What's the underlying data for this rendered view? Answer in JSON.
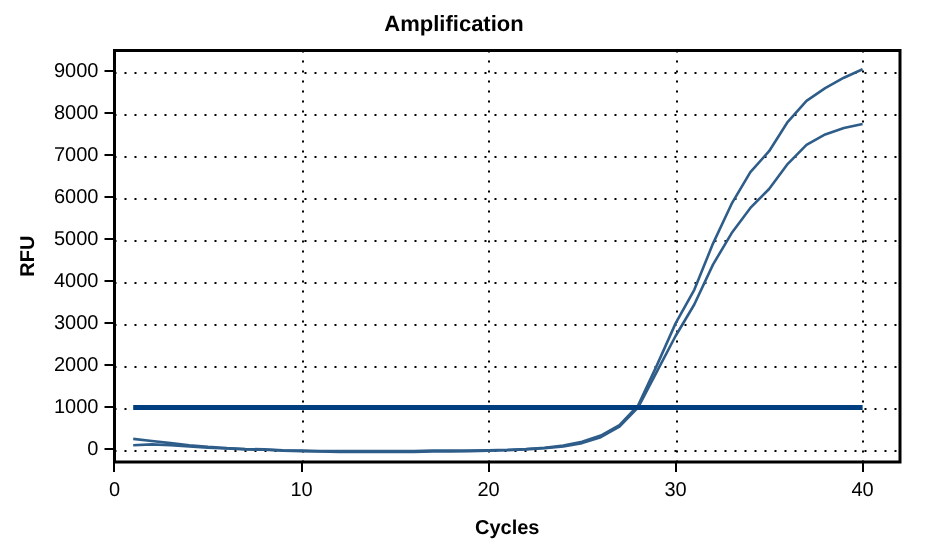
{
  "chart_data": {
    "type": "line",
    "title": "Amplification",
    "xlabel": "Cycles",
    "ylabel": "RFU",
    "x": [
      1,
      2,
      3,
      4,
      5,
      6,
      7,
      8,
      9,
      10,
      11,
      12,
      13,
      14,
      15,
      16,
      17,
      18,
      19,
      20,
      21,
      22,
      23,
      24,
      25,
      26,
      27,
      28,
      29,
      30,
      31,
      32,
      33,
      34,
      35,
      36,
      37,
      38,
      39,
      40
    ],
    "series": [
      {
        "color": "#2f5d8a",
        "values": [
          250,
          200,
          150,
          100,
          60,
          30,
          10,
          0,
          -20,
          -30,
          -40,
          -40,
          -40,
          -40,
          -40,
          -40,
          -30,
          -30,
          -30,
          -20,
          -10,
          10,
          40,
          90,
          180,
          330,
          580,
          1050,
          2000,
          3000,
          3800,
          4900,
          5850,
          6600,
          7100,
          7800,
          8300,
          8600,
          8850,
          9050
        ]
      },
      {
        "color": "#2f5d8a",
        "values": [
          100,
          120,
          100,
          70,
          40,
          20,
          0,
          -10,
          -30,
          -40,
          -50,
          -60,
          -60,
          -60,
          -60,
          -60,
          -50,
          -50,
          -40,
          -30,
          -20,
          0,
          30,
          70,
          150,
          290,
          540,
          1000,
          1850,
          2700,
          3450,
          4400,
          5150,
          5750,
          6200,
          6800,
          7250,
          7500,
          7650,
          7750
        ]
      }
    ],
    "xlim": [
      0,
      42
    ],
    "xticks": [
      0,
      10,
      20,
      30,
      40
    ],
    "ylim": [
      -300,
      9500
    ],
    "yticks": [
      0,
      1000,
      2000,
      3000,
      4000,
      5000,
      6000,
      7000,
      8000,
      9000
    ],
    "ref_lines": [
      {
        "axis": "y",
        "value": 1000,
        "color": "#003f7f"
      }
    ],
    "grid": true,
    "legend": false,
    "marker": "none",
    "line_style": "solid"
  }
}
